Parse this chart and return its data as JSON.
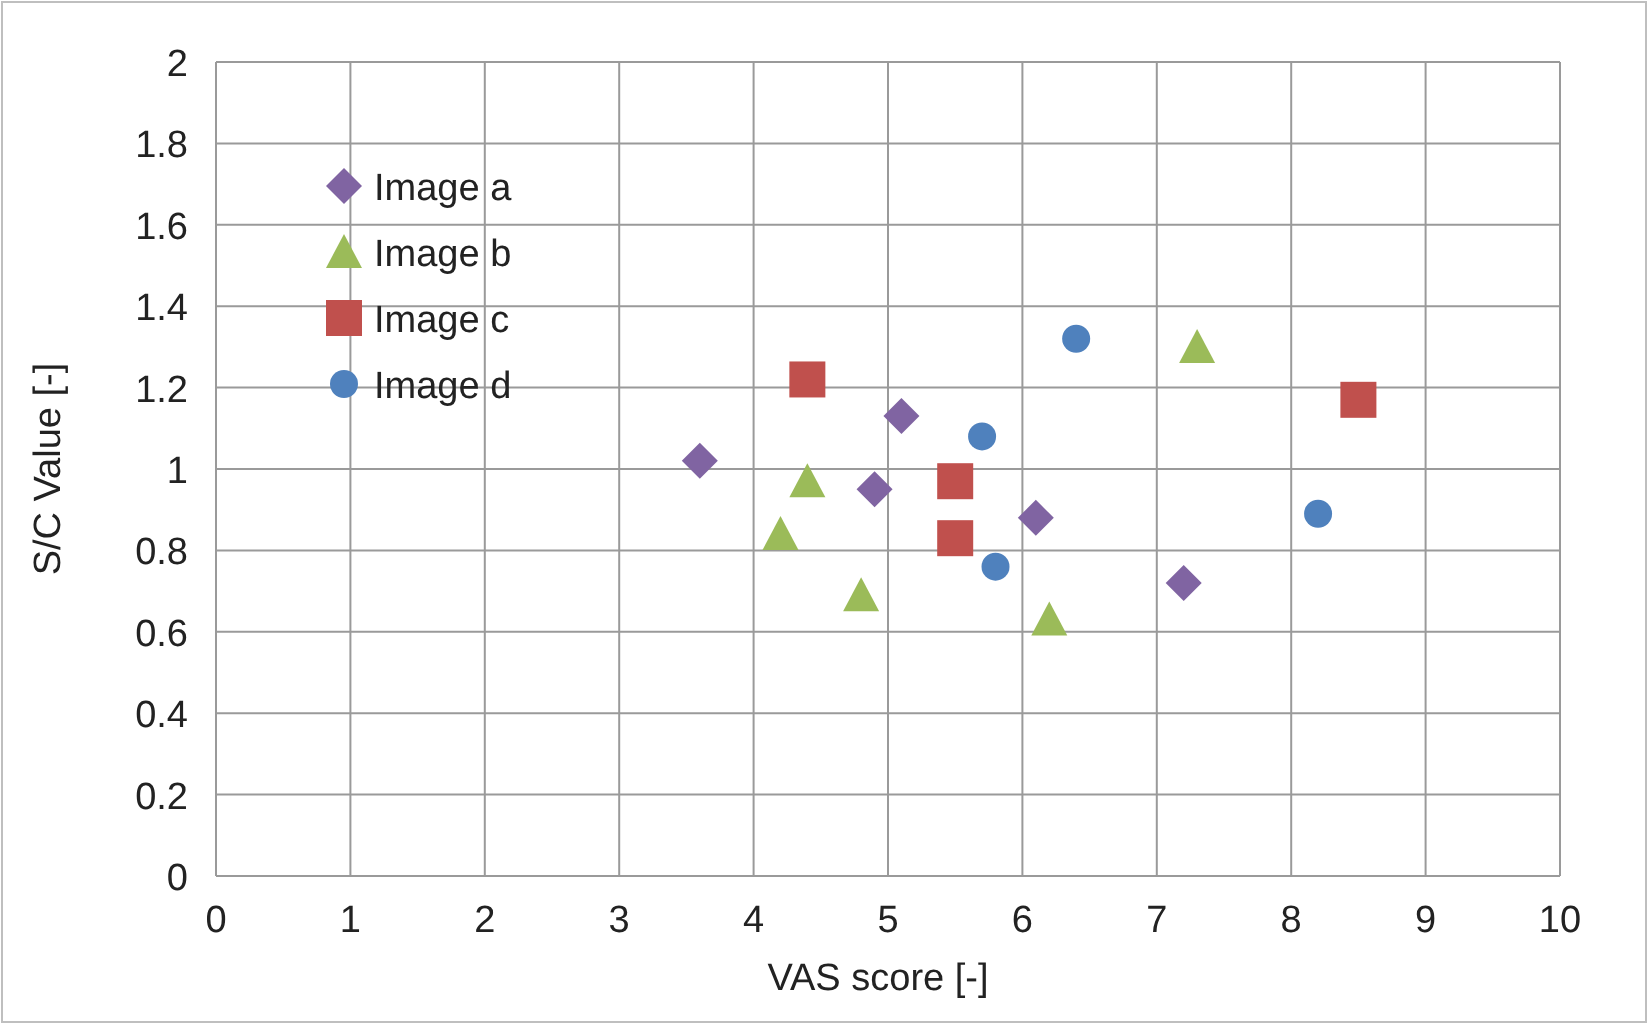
{
  "chart_data": {
    "type": "scatter",
    "xlabel": "VAS score [-]",
    "ylabel": "S/C Value [-]",
    "xlim": [
      0,
      10
    ],
    "xticks": [
      0,
      1,
      2,
      3,
      4,
      5,
      6,
      7,
      8,
      9,
      10
    ],
    "ylim": [
      0,
      2
    ],
    "yticks": [
      {
        "value": 0,
        "label": "0"
      },
      {
        "value": 0.2,
        "label": "0.2"
      },
      {
        "value": 0.4,
        "label": "0.4"
      },
      {
        "value": 0.6,
        "label": "0.6"
      },
      {
        "value": 0.8,
        "label": "0.8"
      },
      {
        "value": 1,
        "label": "1"
      },
      {
        "value": 1.2,
        "label": "1.2"
      },
      {
        "value": 1.4,
        "label": "1.4"
      },
      {
        "value": 1.6,
        "label": "1.6"
      },
      {
        "value": 1.8,
        "label": "1.8"
      },
      {
        "value": 2,
        "label": "2"
      }
    ],
    "grid": true,
    "legend": "top left",
    "series": [
      {
        "name": "Image a",
        "color": "#8064a2",
        "marker": "diamond",
        "x": [
          3.6,
          4.9,
          5.1,
          6.1,
          7.2
        ],
        "values": [
          1.02,
          0.95,
          1.13,
          0.88,
          0.72
        ]
      },
      {
        "name": "Image b",
        "color": "#9bbb59",
        "marker": "triangle",
        "x": [
          4.2,
          4.4,
          4.8,
          6.2,
          7.3
        ],
        "values": [
          0.84,
          0.97,
          0.69,
          0.63,
          1.3
        ]
      },
      {
        "name": "Image c",
        "color": "#c0504d",
        "marker": "square",
        "x": [
          4.4,
          5.5,
          5.5,
          8.5
        ],
        "values": [
          1.22,
          0.97,
          0.83,
          1.17
        ]
      },
      {
        "name": "Image d",
        "color": "#4f81bd",
        "marker": "circle",
        "x": [
          6.4,
          5.7,
          5.8,
          8.2
        ],
        "values": [
          1.32,
          1.08,
          0.76,
          0.89
        ]
      }
    ]
  }
}
